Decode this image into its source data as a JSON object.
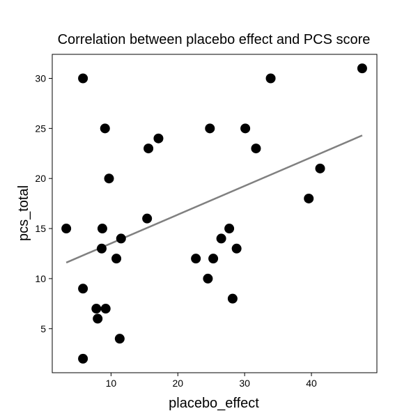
{
  "chart_data": {
    "type": "scatter",
    "title": "Correlation between placebo effect and PCS score",
    "xlabel": "placebo_effect",
    "ylabel": "pcs_total",
    "xlim": [
      1.2,
      49.8
    ],
    "ylim": [
      0.6,
      32.4
    ],
    "xticks": [
      10,
      20,
      30,
      40
    ],
    "yticks": [
      5,
      10,
      15,
      20,
      25,
      30
    ],
    "grid": false,
    "colors": {
      "points": "#000000",
      "trend_line": "#808080",
      "frame": "#000000"
    },
    "points": [
      {
        "x": 3.3,
        "y": 15
      },
      {
        "x": 5.8,
        "y": 30
      },
      {
        "x": 5.8,
        "y": 9
      },
      {
        "x": 5.8,
        "y": 2
      },
      {
        "x": 7.8,
        "y": 7
      },
      {
        "x": 8.0,
        "y": 6
      },
      {
        "x": 8.6,
        "y": 13
      },
      {
        "x": 8.7,
        "y": 15
      },
      {
        "x": 9.1,
        "y": 25
      },
      {
        "x": 9.2,
        "y": 7
      },
      {
        "x": 9.7,
        "y": 20
      },
      {
        "x": 10.8,
        "y": 12
      },
      {
        "x": 11.3,
        "y": 4
      },
      {
        "x": 11.5,
        "y": 14
      },
      {
        "x": 15.4,
        "y": 16
      },
      {
        "x": 15.6,
        "y": 23
      },
      {
        "x": 17.1,
        "y": 24
      },
      {
        "x": 22.7,
        "y": 12
      },
      {
        "x": 24.5,
        "y": 10
      },
      {
        "x": 24.8,
        "y": 25
      },
      {
        "x": 25.3,
        "y": 12
      },
      {
        "x": 26.5,
        "y": 14
      },
      {
        "x": 27.7,
        "y": 15
      },
      {
        "x": 28.2,
        "y": 8
      },
      {
        "x": 28.8,
        "y": 13
      },
      {
        "x": 30.1,
        "y": 25
      },
      {
        "x": 31.7,
        "y": 23
      },
      {
        "x": 33.9,
        "y": 30
      },
      {
        "x": 39.6,
        "y": 18
      },
      {
        "x": 41.3,
        "y": 21
      },
      {
        "x": 47.6,
        "y": 31
      }
    ],
    "trend_line": {
      "x": [
        3.3,
        47.6
      ],
      "y": [
        11.6,
        24.3
      ]
    }
  }
}
